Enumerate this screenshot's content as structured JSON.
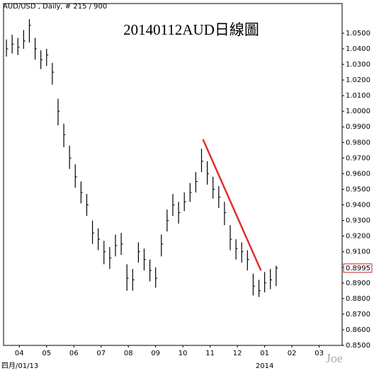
{
  "chart_data": {
    "type": "ohlc",
    "title": "20140112AUD日線圖",
    "subtitle": "AUD/USD , Daily, # 215 / 900",
    "date_label": "四月/01/13",
    "year_label": "2014",
    "watermark": "Joe",
    "color": "#000000",
    "x": [
      1,
      3,
      5,
      7,
      9,
      11,
      13,
      15,
      17,
      19,
      21,
      23,
      25,
      27,
      29,
      31,
      33,
      35,
      37,
      39,
      41,
      43,
      45,
      47,
      49,
      51,
      53,
      55,
      57,
      59,
      61,
      63,
      65,
      67,
      69,
      71,
      73,
      75,
      77,
      79,
      81,
      83,
      85,
      87,
      89,
      91,
      93,
      95
    ],
    "high": [
      1.046,
      1.049,
      1.047,
      1.052,
      1.059,
      1.047,
      1.039,
      1.04,
      1.031,
      1.008,
      0.992,
      0.978,
      0.966,
      0.955,
      0.947,
      0.93,
      0.925,
      0.917,
      0.913,
      0.921,
      0.922,
      0.902,
      0.899,
      0.916,
      0.912,
      0.905,
      0.9,
      0.921,
      0.937,
      0.947,
      0.942,
      0.948,
      0.954,
      0.961,
      0.976,
      0.968,
      0.958,
      0.952,
      0.942,
      0.927,
      0.918,
      0.916,
      0.911,
      0.896,
      0.892,
      0.897,
      0.899,
      0.901
    ],
    "low": [
      1.035,
      1.037,
      1.036,
      1.04,
      1.044,
      1.033,
      1.027,
      1.029,
      1.017,
      0.991,
      0.977,
      0.963,
      0.951,
      0.941,
      0.933,
      0.915,
      0.911,
      0.902,
      0.899,
      0.907,
      0.908,
      0.885,
      0.885,
      0.903,
      0.898,
      0.891,
      0.887,
      0.907,
      0.923,
      0.933,
      0.928,
      0.936,
      0.942,
      0.948,
      0.961,
      0.953,
      0.944,
      0.938,
      0.927,
      0.911,
      0.905,
      0.903,
      0.898,
      0.882,
      0.881,
      0.884,
      0.886,
      0.888
    ],
    "close": [
      1.04,
      1.043,
      1.041,
      1.045,
      1.055,
      1.04,
      1.033,
      1.036,
      1.025,
      1.0,
      0.985,
      0.97,
      0.958,
      0.948,
      0.94,
      0.922,
      0.918,
      0.91,
      0.906,
      0.914,
      0.915,
      0.893,
      0.892,
      0.91,
      0.905,
      0.898,
      0.893,
      0.915,
      0.93,
      0.94,
      0.935,
      0.942,
      0.948,
      0.955,
      0.968,
      0.96,
      0.95,
      0.945,
      0.935,
      0.918,
      0.912,
      0.91,
      0.905,
      0.888,
      0.885,
      0.89,
      0.892,
      0.8995
    ],
    "last_price": {
      "value": 0.8995,
      "label": "0.8995"
    },
    "last_price_color": "#d42020",
    "trendline": {
      "x": [
        69.5,
        89.7
      ],
      "y": [
        0.982,
        0.898
      ],
      "color": "#e03030"
    },
    "xlim": [
      0,
      118
    ],
    "xticks": [
      {
        "value": 5.5,
        "label": "04"
      },
      {
        "value": 15,
        "label": "05"
      },
      {
        "value": 24.5,
        "label": "06"
      },
      {
        "value": 34,
        "label": "07"
      },
      {
        "value": 43.5,
        "label": "08"
      },
      {
        "value": 53,
        "label": "09"
      },
      {
        "value": 62.5,
        "label": "10"
      },
      {
        "value": 72,
        "label": "11"
      },
      {
        "value": 81.5,
        "label": "12"
      },
      {
        "value": 91,
        "label": "01"
      },
      {
        "value": 100.5,
        "label": "02"
      },
      {
        "value": 110,
        "label": "03"
      }
    ],
    "ylim": [
      0.85,
      1.069
    ],
    "yticks": [
      {
        "value": 0.85,
        "label": "0.8500"
      },
      {
        "value": 0.86,
        "label": "0.8600"
      },
      {
        "value": 0.87,
        "label": "0.8700"
      },
      {
        "value": 0.88,
        "label": "0.8800"
      },
      {
        "value": 0.89,
        "label": "0.8900"
      },
      {
        "value": 0.9,
        "label": "0.9000"
      },
      {
        "value": 0.91,
        "label": "0.9100"
      },
      {
        "value": 0.92,
        "label": "0.9200"
      },
      {
        "value": 0.93,
        "label": "0.9300"
      },
      {
        "value": 0.94,
        "label": "0.9400"
      },
      {
        "value": 0.95,
        "label": "0.9500"
      },
      {
        "value": 0.96,
        "label": "0.9600"
      },
      {
        "value": 0.97,
        "label": "0.9700"
      },
      {
        "value": 0.98,
        "label": "0.9800"
      },
      {
        "value": 0.99,
        "label": "0.9900"
      },
      {
        "value": 1.0,
        "label": "1.0000"
      },
      {
        "value": 1.01,
        "label": "1.0100"
      },
      {
        "value": 1.02,
        "label": "1.0200"
      },
      {
        "value": 1.03,
        "label": "1.0300"
      },
      {
        "value": 1.04,
        "label": "1.0400"
      },
      {
        "value": 1.05,
        "label": "1.0500"
      }
    ],
    "grid": false
  }
}
